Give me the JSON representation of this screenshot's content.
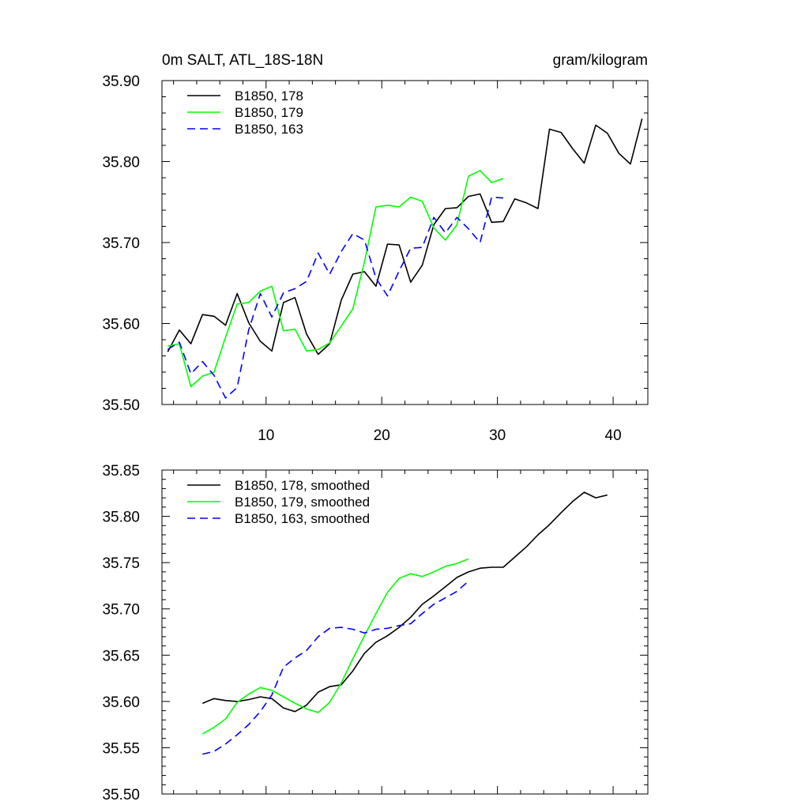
{
  "chart_data": [
    {
      "type": "line",
      "title": "0m SALT, ATL_18S-18N",
      "subtitle": "gram/kilogram",
      "xlim": [
        1,
        43
      ],
      "ylim": [
        35.5,
        35.9
      ],
      "x_ticks": [
        10,
        20,
        30,
        40
      ],
      "x_tick_labels": [
        "10",
        "20",
        "30",
        "40"
      ],
      "y_ticks": [
        35.5,
        35.6,
        35.7,
        35.8,
        35.9
      ],
      "y_tick_labels": [
        "35.50",
        "35.60",
        "35.70",
        "35.80",
        "35.90"
      ],
      "grid": false,
      "legend_position": "top-left",
      "series": [
        {
          "name": "B1850, 178",
          "color": "#000000",
          "dash": "solid",
          "x": [
            1.5,
            2.5,
            3.5,
            4.5,
            5.5,
            6.5,
            7.5,
            8.5,
            9.5,
            10.5,
            11.5,
            12.5,
            13.5,
            14.5,
            15.5,
            16.5,
            17.5,
            18.5,
            19.5,
            20.5,
            21.5,
            22.5,
            23.5,
            24.5,
            25.5,
            26.5,
            27.5,
            28.5,
            29.5,
            30.5,
            31.5,
            32.5,
            33.5,
            34.5,
            35.5,
            36.5,
            37.5,
            38.5,
            39.5,
            40.5,
            41.5,
            42.5
          ],
          "values": [
            35.565,
            35.592,
            35.575,
            35.611,
            35.609,
            35.598,
            35.637,
            35.601,
            35.578,
            35.566,
            35.626,
            35.632,
            35.587,
            35.562,
            35.575,
            35.629,
            35.661,
            35.664,
            35.646,
            35.698,
            35.697,
            35.651,
            35.672,
            35.722,
            35.742,
            35.743,
            35.757,
            35.76,
            35.725,
            35.726,
            35.754,
            35.749,
            35.742,
            35.84,
            35.836,
            35.816,
            35.798,
            35.845,
            35.835,
            35.81,
            35.797,
            35.853
          ]
        },
        {
          "name": "B1850, 179",
          "color": "#00ff00",
          "dash": "solid",
          "x": [
            1.5,
            2.5,
            3.5,
            4.5,
            5.5,
            6.5,
            7.5,
            8.5,
            9.5,
            10.5,
            11.5,
            12.5,
            13.5,
            14.5,
            15.5,
            16.5,
            17.5,
            18.5,
            19.5,
            20.5,
            21.5,
            22.5,
            23.5,
            24.5,
            25.5,
            26.5,
            27.5,
            28.5,
            29.5,
            30.5
          ],
          "values": [
            35.572,
            35.575,
            35.522,
            35.535,
            35.54,
            35.583,
            35.624,
            35.626,
            35.64,
            35.646,
            35.591,
            35.593,
            35.566,
            35.568,
            35.576,
            35.597,
            35.618,
            35.676,
            35.744,
            35.746,
            35.744,
            35.756,
            35.751,
            35.718,
            35.703,
            35.722,
            35.782,
            35.789,
            35.774,
            35.779
          ]
        },
        {
          "name": "B1850, 163",
          "color": "#0000ff",
          "dash": "dashed",
          "x": [
            1.5,
            2.5,
            3.5,
            4.5,
            5.5,
            6.5,
            7.5,
            8.5,
            9.5,
            10.5,
            11.5,
            12.5,
            13.5,
            14.5,
            15.5,
            16.5,
            17.5,
            18.5,
            19.5,
            20.5,
            21.5,
            22.5,
            23.5,
            24.5,
            25.5,
            26.5,
            27.5,
            28.5,
            29.5,
            30.5
          ],
          "values": [
            35.568,
            35.577,
            35.538,
            35.553,
            35.536,
            35.508,
            35.521,
            35.592,
            35.637,
            35.608,
            35.638,
            35.643,
            35.652,
            35.687,
            35.661,
            35.689,
            35.711,
            35.703,
            35.656,
            35.634,
            35.665,
            35.693,
            35.694,
            35.731,
            35.712,
            35.731,
            35.717,
            35.7,
            35.756,
            35.755
          ]
        }
      ]
    },
    {
      "type": "line",
      "xlim": [
        1,
        43
      ],
      "ylim": [
        35.5,
        35.85
      ],
      "x_ticks": [
        10,
        20,
        30,
        40
      ],
      "y_ticks": [
        35.5,
        35.55,
        35.6,
        35.65,
        35.7,
        35.75,
        35.8,
        35.85
      ],
      "y_tick_labels": [
        "35.50",
        "35.55",
        "35.60",
        "35.65",
        "35.70",
        "35.75",
        "35.80",
        "35.85"
      ],
      "grid": false,
      "legend_position": "top-left",
      "series": [
        {
          "name": "B1850, 178, smoothed",
          "color": "#000000",
          "dash": "solid",
          "x": [
            4.5,
            5.5,
            6.5,
            7.5,
            8.5,
            9.5,
            10.5,
            11.5,
            12.5,
            13.5,
            14.5,
            15.5,
            16.5,
            17.5,
            18.5,
            19.5,
            20.5,
            21.5,
            22.5,
            23.5,
            24.5,
            25.5,
            26.5,
            27.5,
            28.5,
            29.5,
            30.5,
            31.5,
            32.5,
            33.5,
            34.5,
            35.5,
            36.5,
            37.5,
            38.5,
            39.5
          ],
          "values": [
            35.598,
            35.603,
            35.601,
            35.6,
            35.602,
            35.605,
            35.603,
            35.593,
            35.589,
            35.596,
            35.61,
            35.616,
            35.618,
            35.633,
            35.652,
            35.664,
            35.671,
            35.68,
            35.691,
            35.705,
            35.714,
            35.724,
            35.734,
            35.74,
            35.744,
            35.745,
            35.745,
            35.756,
            35.767,
            35.78,
            35.791,
            35.804,
            35.816,
            35.826,
            35.82,
            35.823
          ]
        },
        {
          "name": "B1850, 179, smoothed",
          "color": "#00ff00",
          "dash": "solid",
          "x": [
            4.5,
            5.5,
            6.5,
            7.5,
            8.5,
            9.5,
            10.5,
            11.5,
            12.5,
            13.5,
            14.5,
            15.5,
            16.5,
            17.5,
            18.5,
            19.5,
            20.5,
            21.5,
            22.5,
            23.5,
            24.5,
            25.5,
            26.5,
            27.5
          ],
          "values": [
            35.565,
            35.572,
            35.581,
            35.599,
            35.608,
            35.615,
            35.612,
            35.605,
            35.598,
            35.592,
            35.588,
            35.599,
            35.62,
            35.646,
            35.671,
            35.695,
            35.718,
            35.733,
            35.738,
            35.735,
            35.74,
            35.746,
            35.749,
            35.754
          ]
        },
        {
          "name": "B1850, 163, smoothed",
          "color": "#0000ff",
          "dash": "dashed",
          "x": [
            4.5,
            5.5,
            6.5,
            7.5,
            8.5,
            9.5,
            10.5,
            11.5,
            12.5,
            13.5,
            14.5,
            15.5,
            16.5,
            17.5,
            18.5,
            19.5,
            20.5,
            21.5,
            22.5,
            23.5,
            24.5,
            25.5,
            26.5,
            27.5
          ],
          "values": [
            35.543,
            35.546,
            35.554,
            35.564,
            35.575,
            35.589,
            35.607,
            35.637,
            35.647,
            35.655,
            35.67,
            35.679,
            35.68,
            35.678,
            35.674,
            35.678,
            35.679,
            35.682,
            35.684,
            35.695,
            35.705,
            35.712,
            35.719,
            35.73
          ]
        }
      ]
    }
  ]
}
